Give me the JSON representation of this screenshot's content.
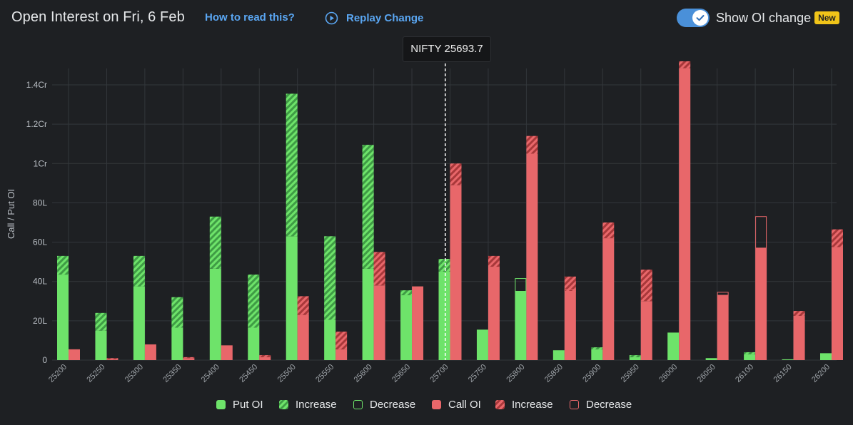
{
  "header": {
    "title": "Open Interest on Fri, 6 Feb",
    "how_link": "How to read this?",
    "replay_label": "Replay Change",
    "toggle_label": "Show OI change",
    "toggle_on": true,
    "new_badge": "New"
  },
  "tooltip": {
    "text": "NIFTY 25693.7"
  },
  "legend": {
    "items": [
      {
        "label": "Put OI",
        "kind": "put"
      },
      {
        "label": "Increase",
        "kind": "put-increase"
      },
      {
        "label": "Decrease",
        "kind": "put-decrease"
      },
      {
        "label": "Call OI",
        "kind": "call"
      },
      {
        "label": "Increase",
        "kind": "call-increase"
      },
      {
        "label": "Decrease",
        "kind": "call-decrease"
      }
    ]
  },
  "colors": {
    "background": "#1e2023",
    "put": "#6ee36a",
    "put_stripe": "#3f9c45",
    "call": "#e8676a",
    "call_stripe": "#a8383a",
    "grid": "#33373b",
    "link": "#5aa6f2",
    "badge": "#f0c419"
  },
  "chart_data": {
    "type": "bar",
    "ylabel": "Call / Put OI",
    "ylim": [
      0,
      14000000
    ],
    "yticks": [
      {
        "value": 0,
        "label": "0"
      },
      {
        "value": 2000000,
        "label": "20L"
      },
      {
        "value": 4000000,
        "label": "40L"
      },
      {
        "value": 6000000,
        "label": "60L"
      },
      {
        "value": 8000000,
        "label": "80L"
      },
      {
        "value": 10000000,
        "label": "1Cr"
      },
      {
        "value": 12000000,
        "label": "1.2Cr"
      },
      {
        "value": 14000000,
        "label": "1.4Cr"
      }
    ],
    "spot_strike": 25693.7,
    "grid": true,
    "legend_position": "bottom",
    "categories": [
      "25200",
      "25250",
      "25300",
      "25350",
      "25400",
      "25450",
      "25500",
      "25550",
      "25600",
      "25650",
      "25700",
      "25750",
      "25800",
      "25850",
      "25900",
      "25950",
      "26000",
      "26050",
      "26100",
      "26150",
      "26200"
    ],
    "series": [
      {
        "name": "Put OI",
        "base": [
          4350000,
          1500000,
          3750000,
          1650000,
          4650000,
          1650000,
          6300000,
          2050000,
          4650000,
          3300000,
          4500000,
          1550000,
          3500000,
          500000,
          550000,
          150000,
          1400000,
          100000,
          300000,
          40000,
          350000
        ],
        "increase": [
          950000,
          900000,
          1550000,
          1550000,
          2650000,
          2700000,
          7250000,
          4250000,
          6300000,
          250000,
          650000,
          0,
          0,
          0,
          100000,
          100000,
          0,
          0,
          100000,
          0,
          0
        ],
        "decrease": [
          0,
          0,
          0,
          0,
          0,
          0,
          0,
          0,
          0,
          0,
          0,
          0,
          650000,
          0,
          0,
          0,
          0,
          0,
          0,
          0,
          0
        ]
      },
      {
        "name": "Call OI",
        "base": [
          550000,
          50000,
          800000,
          100000,
          750000,
          150000,
          2300000,
          550000,
          3800000,
          3750000,
          8900000,
          4750000,
          10500000,
          3500000,
          6200000,
          3000000,
          14850000,
          3300000,
          5700000,
          2250000,
          5750000
        ],
        "increase": [
          0,
          50000,
          0,
          50000,
          0,
          100000,
          950000,
          900000,
          1700000,
          0,
          1100000,
          550000,
          900000,
          750000,
          800000,
          1600000,
          350000,
          0,
          0,
          250000,
          900000
        ],
        "decrease": [
          0,
          0,
          0,
          0,
          0,
          0,
          0,
          0,
          0,
          0,
          0,
          0,
          0,
          100000,
          0,
          0,
          0,
          150000,
          1600000,
          0,
          0
        ]
      }
    ]
  }
}
